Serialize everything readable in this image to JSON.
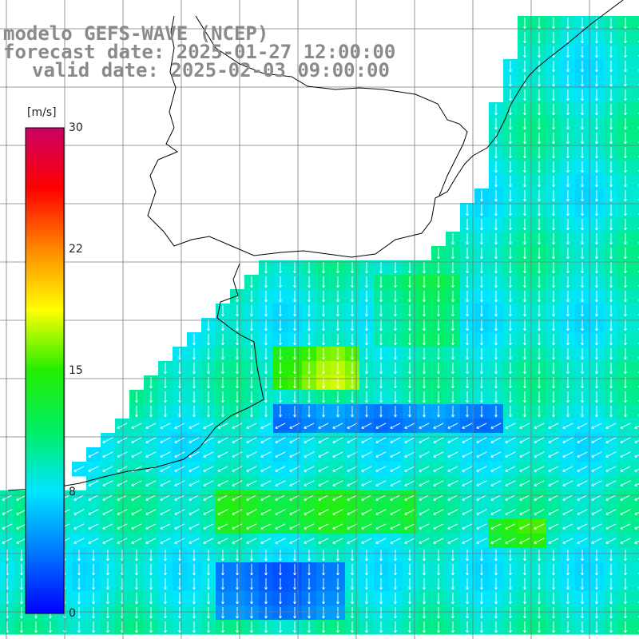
{
  "title": {
    "line1": "modelo GEFS-WAVE (NCEP)",
    "line2": "forecast date: 2025-01-27 12:00:00",
    "line3": "valid date: 2025-02-03 09:00:00"
  },
  "colorbar": {
    "unit": "[m/s]",
    "min": 0,
    "max": 30,
    "ticks": [
      "30",
      "22",
      "15",
      "8",
      "0"
    ],
    "tick_values": [
      30,
      22,
      15,
      8,
      0
    ],
    "colors": [
      "#0000ff",
      "#0077ff",
      "#00e5ff",
      "#00ee66",
      "#22ee00",
      "#ffff00",
      "#ff8800",
      "#ff0000",
      "#cc0066"
    ]
  },
  "map": {
    "land_color": "#ffffff",
    "coastline_color": "#000000",
    "grid_color": "#7a7a7a",
    "projection": "lat-lon",
    "field": "wind speed and direction"
  }
}
